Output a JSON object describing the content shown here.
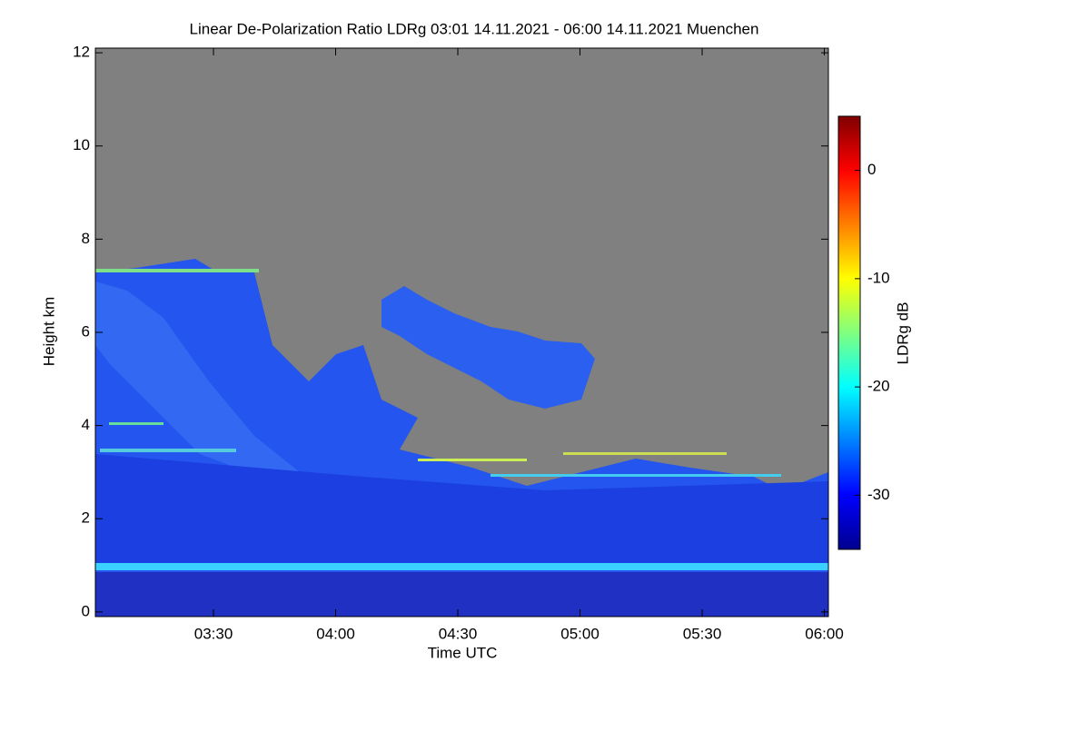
{
  "chart_data": {
    "type": "heatmap",
    "title": "Linear De-Polarization Ratio LDRg   03:01 14.11.2021 - 06:00 14.11.2021 Muenchen",
    "x_label": "Time UTC",
    "y_label": "Height km",
    "xlim": [
      181,
      361
    ],
    "xticks": [
      {
        "value": 210,
        "label": "03:30"
      },
      {
        "value": 240,
        "label": "04:00"
      },
      {
        "value": 270,
        "label": "04:30"
      },
      {
        "value": 300,
        "label": "05:00"
      },
      {
        "value": 330,
        "label": "05:30"
      },
      {
        "value": 360,
        "label": "06:00"
      }
    ],
    "ylim": [
      -0.1,
      12.1
    ],
    "yticks": [
      0,
      2,
      4,
      6,
      8,
      10,
      12
    ],
    "colorbar": {
      "label": "LDRg dB",
      "clim": [
        -35,
        5
      ],
      "ticks": [
        0,
        -10,
        -20,
        -30
      ]
    }
  }
}
